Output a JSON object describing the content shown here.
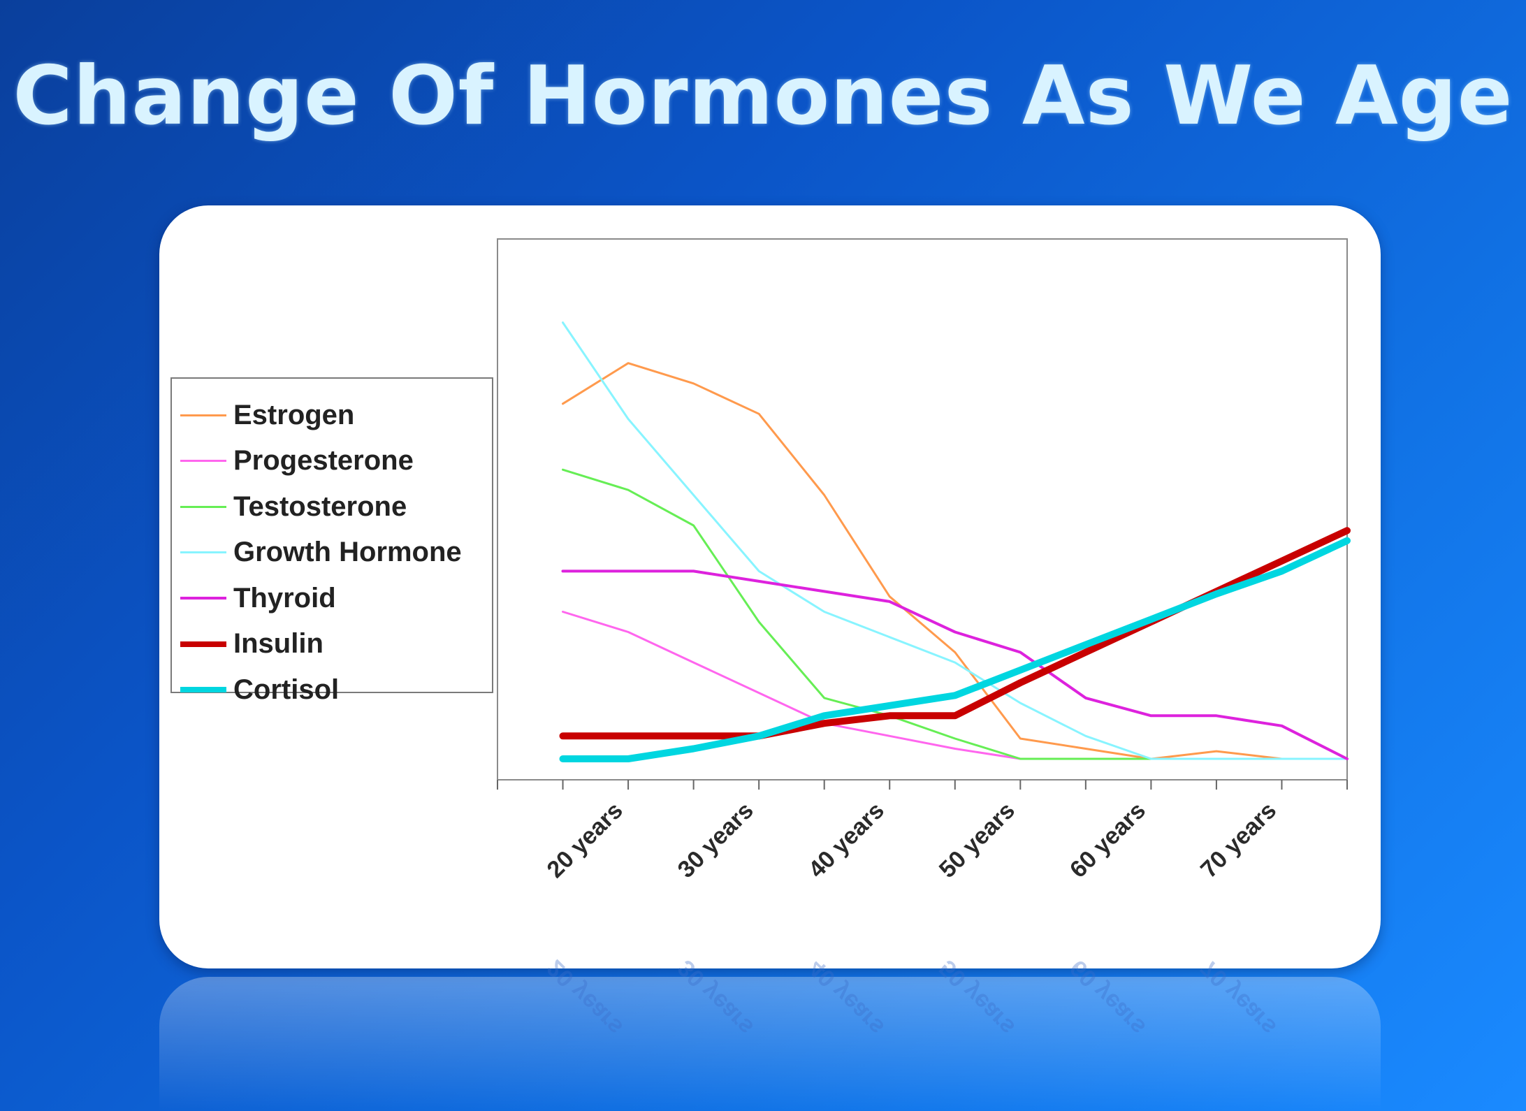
{
  "slide": {
    "title": "Change Of Hormones As We Age"
  },
  "chart_data": {
    "type": "line",
    "categories": [
      "20 years",
      "30 years",
      "40 years",
      "50 years",
      "60 years",
      "70 years"
    ],
    "x": [
      18,
      23,
      28,
      33,
      38,
      43,
      48,
      53,
      58,
      63,
      68,
      73,
      78
    ],
    "ylim": [
      0,
      10
    ],
    "grid": false,
    "legend_placement": "left",
    "series": [
      {
        "name": "Estrogen",
        "color": "#ff9a4d",
        "width": 3,
        "values": [
          7.0,
          7.8,
          7.4,
          6.8,
          5.2,
          3.2,
          2.1,
          0.4,
          0.2,
          0.0,
          0.15,
          0.0,
          0.0
        ]
      },
      {
        "name": "Progesterone",
        "color": "#ff66ee",
        "width": 3,
        "values": [
          2.9,
          2.5,
          1.9,
          1.3,
          0.7,
          0.45,
          0.2,
          0.0,
          0.0,
          0.0,
          0.0,
          0.0,
          0.0
        ]
      },
      {
        "name": "Testosterone",
        "color": "#66ee55",
        "width": 3,
        "values": [
          5.7,
          5.3,
          4.6,
          2.7,
          1.2,
          0.85,
          0.4,
          0.0,
          0.0,
          0.0,
          0.0,
          0.0,
          0.0
        ]
      },
      {
        "name": "Growth Hormone",
        "color": "#88f4ff",
        "width": 3,
        "values": [
          8.6,
          6.7,
          5.2,
          3.7,
          2.9,
          2.4,
          1.9,
          1.1,
          0.45,
          0.0,
          0.0,
          0.0,
          0.0
        ]
      },
      {
        "name": "Thyroid",
        "color": "#dd22dd",
        "width": 4,
        "values": [
          3.7,
          3.7,
          3.7,
          3.5,
          3.3,
          3.1,
          2.5,
          2.1,
          1.2,
          0.85,
          0.85,
          0.65,
          0.0
        ]
      },
      {
        "name": "Insulin",
        "color": "#c80000",
        "width": 10,
        "values": [
          0.45,
          0.45,
          0.45,
          0.45,
          0.7,
          0.85,
          0.85,
          1.5,
          2.1,
          2.7,
          3.3,
          3.9,
          4.5
        ]
      },
      {
        "name": "Cortisol",
        "color": "#00d6e0",
        "width": 10,
        "values": [
          0.0,
          0.0,
          0.2,
          0.45,
          0.85,
          1.05,
          1.25,
          1.75,
          2.25,
          2.75,
          3.25,
          3.7,
          4.3
        ]
      }
    ]
  }
}
